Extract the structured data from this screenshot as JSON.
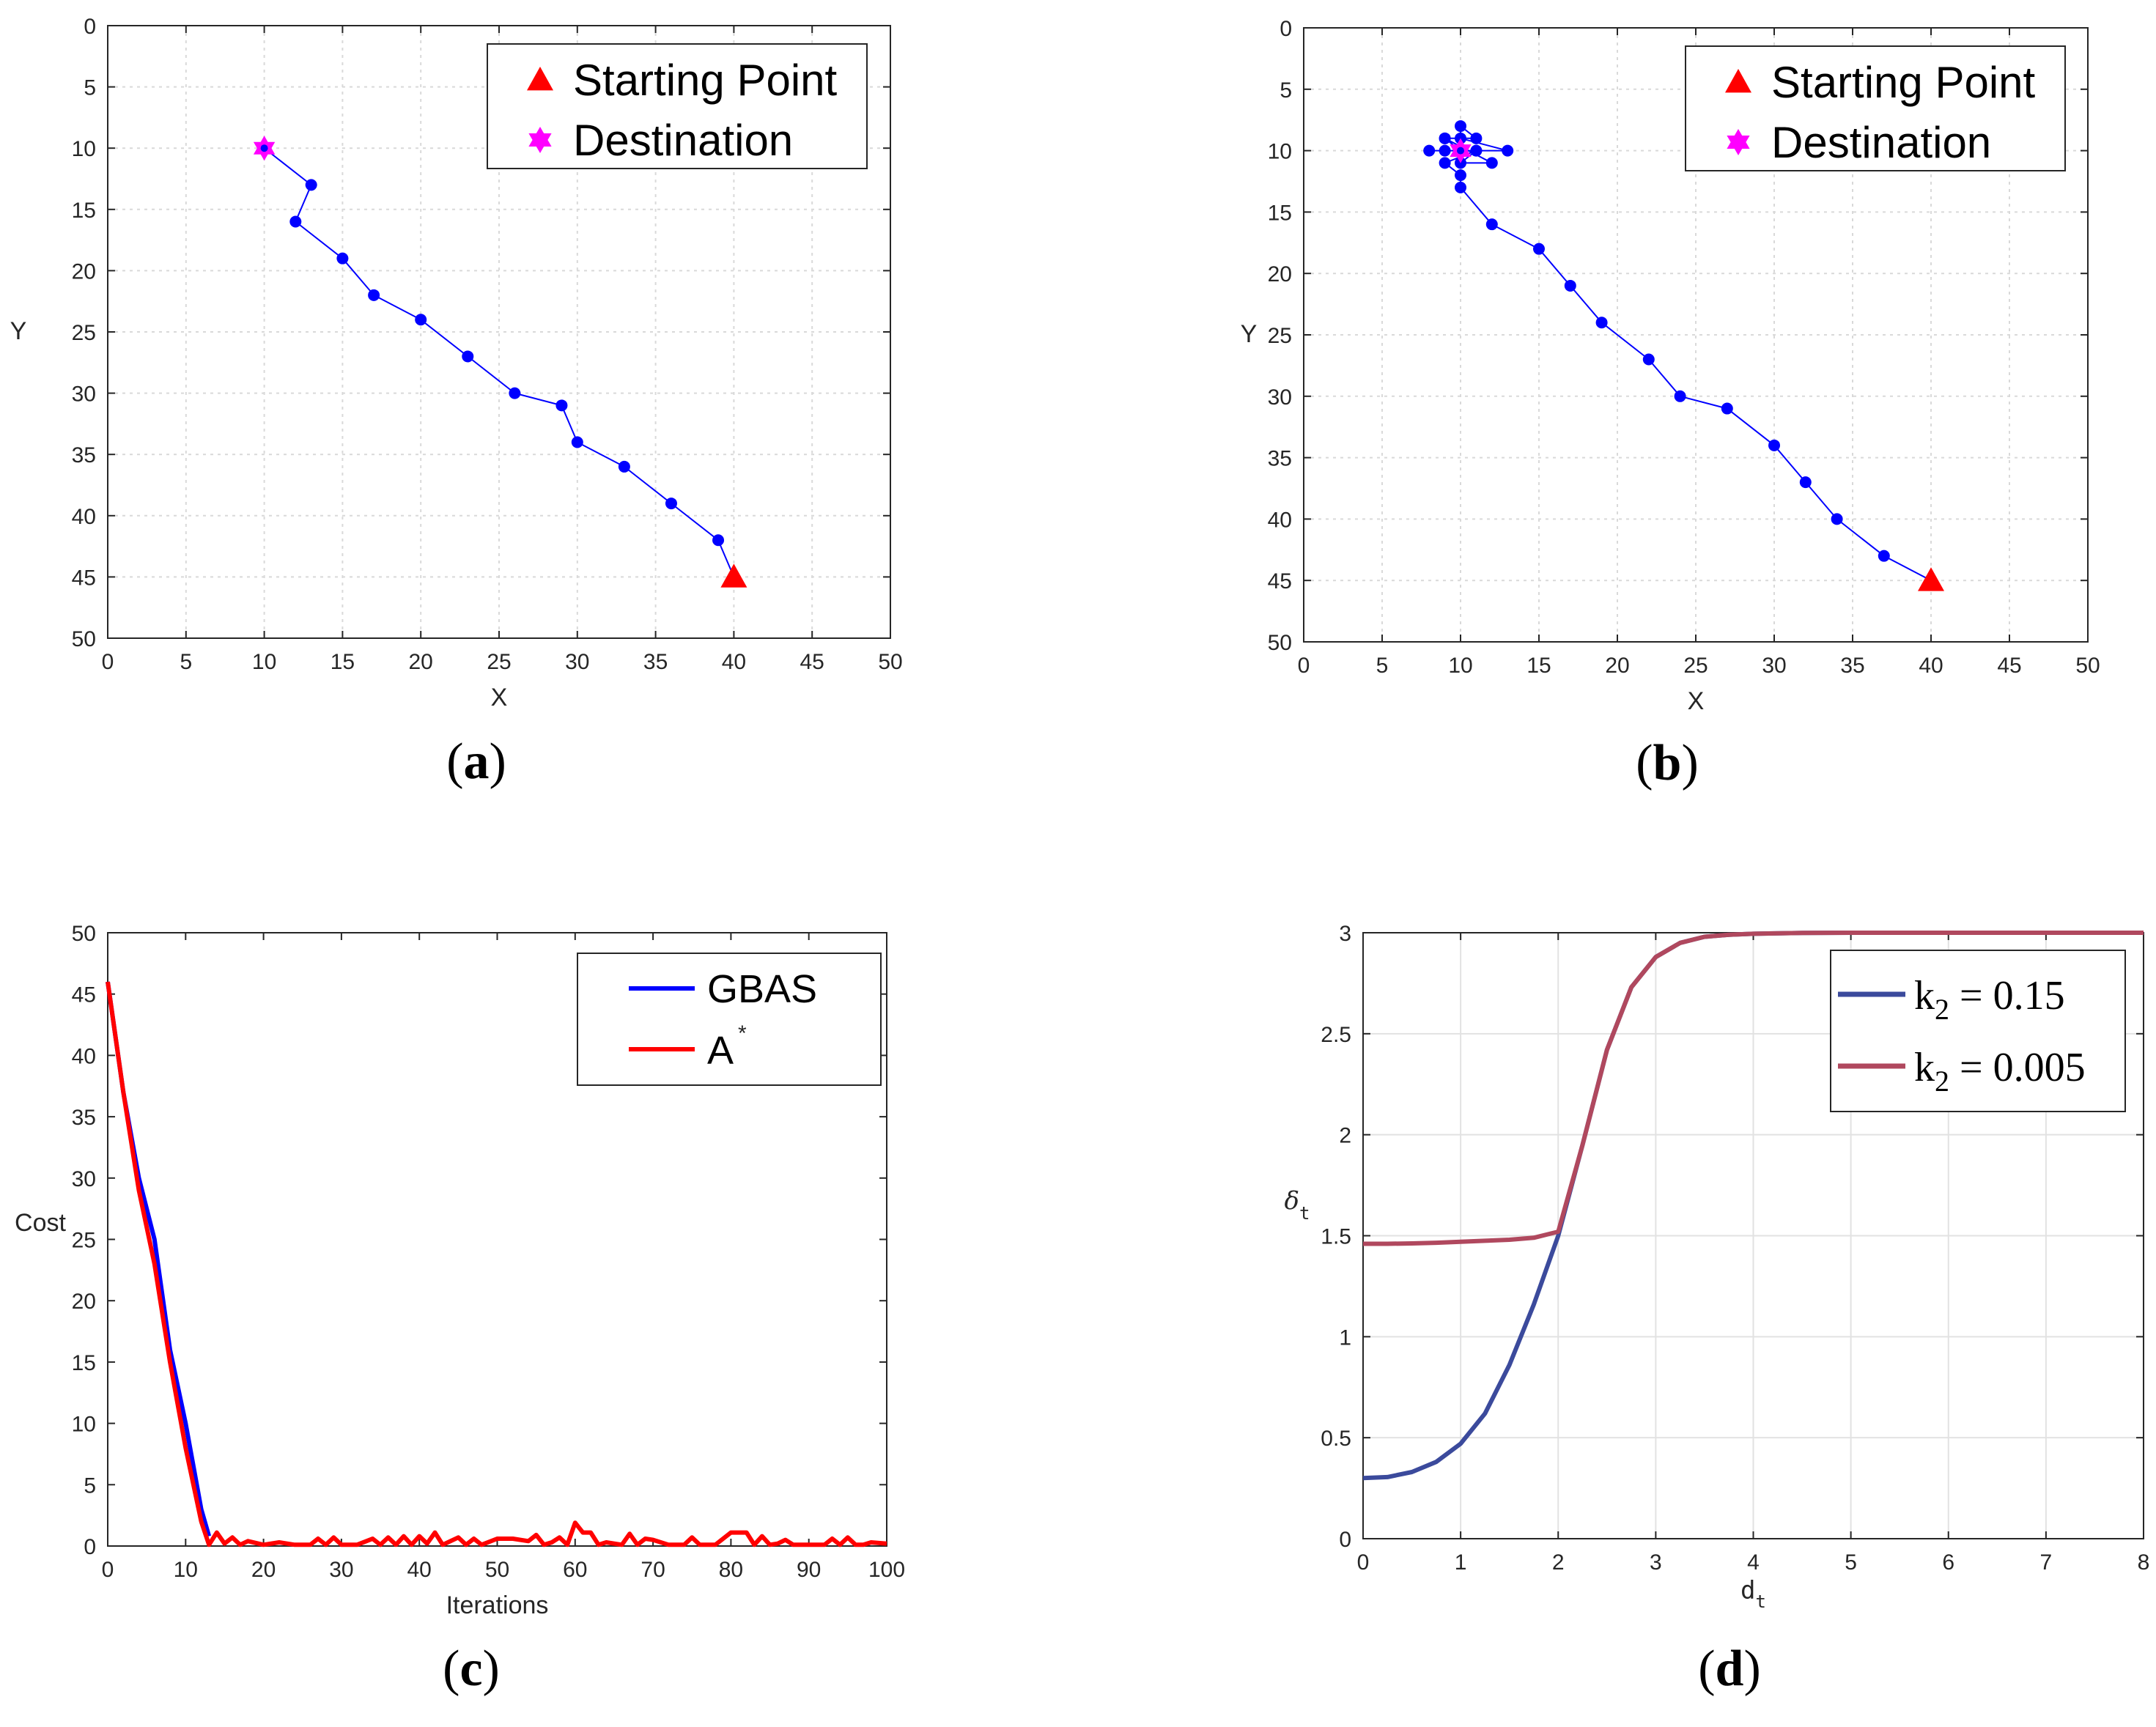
{
  "chart_data": [
    {
      "id": "a",
      "type": "line",
      "caption_letter": "a",
      "xlabel": "X",
      "ylabel": "Y",
      "xlim": [
        0,
        50
      ],
      "ylim": [
        0,
        50
      ],
      "y_reversed": true,
      "grid": true,
      "xticks": [
        0,
        5,
        10,
        15,
        20,
        25,
        30,
        35,
        40,
        45,
        50
      ],
      "yticks": [
        0,
        5,
        10,
        15,
        20,
        25,
        30,
        35,
        40,
        45,
        50
      ],
      "legend_location": "top-right",
      "legend": [
        {
          "label": "Starting Point",
          "marker": "triangle",
          "color": "#ff0000"
        },
        {
          "label": "Destination",
          "marker": "hexagram",
          "color": "#ff00ff"
        }
      ],
      "series": [
        {
          "name": "path",
          "color": "#0000ff",
          "marker": "dot",
          "x": [
            40,
            39,
            36,
            33,
            30,
            29,
            26,
            23,
            20,
            17,
            15,
            12,
            13,
            10
          ],
          "y": [
            45,
            42,
            39,
            36,
            34,
            31,
            30,
            27,
            24,
            22,
            19,
            16,
            13,
            10
          ]
        }
      ],
      "start": [
        40,
        45
      ],
      "destination": [
        10,
        10
      ]
    },
    {
      "id": "b",
      "type": "line",
      "caption_letter": "b",
      "xlabel": "X",
      "ylabel": "Y",
      "xlim": [
        0,
        50
      ],
      "ylim": [
        0,
        50
      ],
      "y_reversed": true,
      "grid": true,
      "xticks": [
        0,
        5,
        10,
        15,
        20,
        25,
        30,
        35,
        40,
        45,
        50
      ],
      "yticks": [
        0,
        5,
        10,
        15,
        20,
        25,
        30,
        35,
        40,
        45,
        50
      ],
      "legend_location": "top-right",
      "legend": [
        {
          "label": "Starting Point",
          "marker": "triangle",
          "color": "#ff0000"
        },
        {
          "label": "Destination",
          "marker": "hexagram",
          "color": "#ff00ff"
        }
      ],
      "series": [
        {
          "name": "path",
          "color": "#0000ff",
          "marker": "dot",
          "x": [
            40,
            37,
            34,
            32,
            30,
            27,
            24,
            22,
            19,
            17,
            15,
            12,
            10,
            10,
            9,
            11,
            8,
            13,
            10,
            9,
            11,
            10,
            10,
            9,
            11,
            10,
            12,
            9,
            10
          ],
          "y": [
            45,
            43,
            40,
            37,
            34,
            31,
            30,
            27,
            24,
            21,
            18,
            16,
            13,
            12,
            11,
            10,
            10,
            10,
            9,
            9,
            9,
            8,
            10,
            10,
            10,
            11,
            11,
            9,
            10
          ]
        }
      ],
      "start": [
        40,
        45
      ],
      "destination": [
        10,
        10
      ]
    },
    {
      "id": "c",
      "type": "line",
      "caption_letter": "c",
      "xlabel": "Iterations",
      "ylabel": "Cost",
      "xlim": [
        0,
        100
      ],
      "ylim": [
        0,
        50
      ],
      "grid": false,
      "xticks": [
        0,
        10,
        20,
        30,
        40,
        50,
        60,
        70,
        80,
        90,
        100
      ],
      "yticks": [
        0,
        5,
        10,
        15,
        20,
        25,
        30,
        35,
        40,
        45,
        50
      ],
      "legend_location": "top-right",
      "legend": [
        {
          "label": "GBAS",
          "color": "#0000ff"
        },
        {
          "label": "A",
          "sup": "*",
          "color": "#ff0000"
        }
      ],
      "series": [
        {
          "name": "GBAS",
          "color": "#0000ff",
          "x": [
            0,
            2,
            4,
            6,
            8,
            10,
            12,
            13
          ],
          "y": [
            46,
            37,
            30,
            25,
            16,
            10,
            3,
            0.8
          ]
        },
        {
          "name": "A*",
          "color": "#ff0000",
          "x": [
            0,
            2,
            4,
            6,
            8,
            10,
            12,
            13,
            14,
            15,
            16,
            17,
            18,
            20,
            22,
            24,
            26,
            27,
            28,
            29,
            30,
            32,
            34,
            35,
            36,
            37,
            38,
            39,
            40,
            41,
            42,
            43,
            44,
            45,
            46,
            47,
            48,
            50,
            52,
            54,
            55,
            56,
            57,
            58,
            59,
            60,
            61,
            62,
            63,
            64,
            66,
            67,
            68,
            69,
            70,
            72,
            74,
            75,
            76,
            78,
            80,
            82,
            83,
            84,
            85,
            86,
            87,
            88,
            90,
            92,
            93,
            94,
            95,
            96,
            97,
            98,
            100
          ],
          "y": [
            46,
            37,
            29,
            23,
            15,
            8,
            2,
            0.1,
            1.1,
            0.2,
            0.7,
            0.1,
            0.4,
            0.1,
            0.3,
            0.1,
            0.1,
            0.6,
            0.1,
            0.7,
            0.1,
            0.1,
            0.6,
            0.1,
            0.7,
            0.1,
            0.8,
            0.1,
            0.8,
            0.2,
            1.1,
            0.1,
            0.4,
            0.7,
            0.1,
            0.6,
            0.1,
            0.6,
            0.6,
            0.4,
            0.9,
            0.1,
            0.3,
            0.7,
            0.1,
            1.9,
            1.1,
            1.1,
            0.1,
            0.3,
            0.1,
            1.0,
            0.1,
            0.6,
            0.5,
            0.1,
            0.1,
            0.7,
            0.1,
            0.1,
            1.1,
            1.1,
            0.1,
            0.8,
            0.1,
            0.2,
            0.5,
            0.1,
            0.1,
            0.1,
            0.6,
            0.1,
            0.7,
            0.1,
            0.1,
            0.3,
            0.2
          ]
        }
      ]
    },
    {
      "id": "d",
      "type": "line",
      "caption_letter": "d",
      "xlabel": "d",
      "xlabel_sub": "t",
      "ylabel": "δ",
      "ylabel_sub": "t",
      "xlim": [
        0,
        8
      ],
      "ylim": [
        0,
        3
      ],
      "grid": true,
      "xticks": [
        0,
        1,
        2,
        3,
        4,
        5,
        6,
        7,
        8
      ],
      "yticks": [
        "0",
        "0.5",
        "1",
        "1.5",
        "2",
        "2.5",
        "3"
      ],
      "legend_location": "top-right",
      "legend": [
        {
          "label": "k",
          "sub": "2",
          "rest": " = 0.15",
          "color": "#3b4a9c"
        },
        {
          "label": "k",
          "sub": "2",
          "rest": " = 0.005",
          "color": "#b0485e"
        }
      ],
      "series": [
        {
          "name": "k2 = 0.15",
          "color": "#3b4a9c",
          "x": [
            0,
            0.25,
            0.5,
            0.75,
            1.0,
            1.25,
            1.5,
            1.75,
            2.0,
            2.25,
            2.5,
            2.75,
            3.0,
            3.25,
            3.5,
            3.75,
            4.0,
            4.5,
            5,
            5.5,
            6,
            6.5,
            7,
            7.5,
            8
          ],
          "y": [
            0.3,
            0.305,
            0.33,
            0.38,
            0.47,
            0.62,
            0.86,
            1.16,
            1.5,
            1.95,
            2.42,
            2.73,
            2.88,
            2.95,
            2.98,
            2.99,
            2.995,
            2.999,
            3.0,
            3.0,
            3.0,
            3.0,
            3.0,
            3.0,
            3.0
          ]
        },
        {
          "name": "k2 = 0.005",
          "color": "#b0485e",
          "x": [
            0,
            0.25,
            0.5,
            0.75,
            1.0,
            1.25,
            1.5,
            1.75,
            2.0,
            2.25,
            2.5,
            2.75,
            3.0,
            3.25,
            3.5,
            3.75,
            4.0,
            4.5,
            5,
            5.5,
            6,
            6.5,
            7,
            7.5,
            8
          ],
          "y": [
            1.46,
            1.46,
            1.462,
            1.465,
            1.47,
            1.475,
            1.48,
            1.49,
            1.52,
            1.95,
            2.42,
            2.73,
            2.88,
            2.95,
            2.98,
            2.99,
            2.995,
            2.999,
            3.0,
            3.0,
            3.0,
            3.0,
            3.0,
            3.0,
            3.0
          ]
        }
      ]
    }
  ]
}
